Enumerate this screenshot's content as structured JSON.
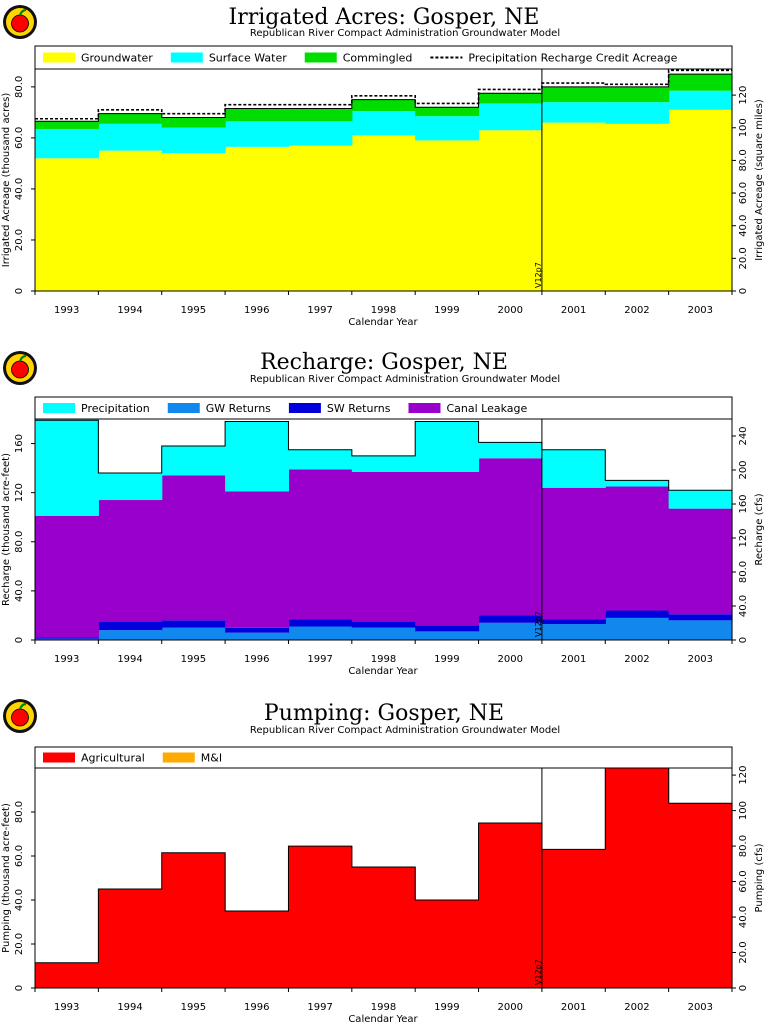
{
  "logo": "apple-logo-icon",
  "colors": {
    "groundwater": "#ffff00",
    "surface_water": "#00ffff",
    "commingled": "#00dd00",
    "precipitation": "#00ffff",
    "gw_returns": "#1188ee",
    "sw_returns": "#0000dd",
    "canal_leakage": "#9900cc",
    "agricultural": "#ff0000",
    "mi": "#ffaa00"
  },
  "chart_data": [
    {
      "id": "irrigated",
      "type": "area",
      "style": "stacked-step",
      "title": "Irrigated Acres: Gosper, NE",
      "subtitle": "Republican River Compact Administration Groundwater Model",
      "xlabel": "Calendar Year",
      "ylabel": "Irrigated Acreage (thousand acres)",
      "y2label": "Irrigated Acreage (square miles)",
      "categories": [
        "1993",
        "1994",
        "1995",
        "1996",
        "1997",
        "1998",
        "1999",
        "2000",
        "2001",
        "2002",
        "2003"
      ],
      "series": [
        {
          "name": "Groundwater",
          "color": "#ffff00",
          "values": [
            52,
            55,
            54,
            56.5,
            57,
            61,
            59,
            63,
            66,
            65.5,
            71
          ]
        },
        {
          "name": "Surface Water",
          "color": "#00ffff",
          "values": [
            11.5,
            10.5,
            10,
            10,
            9.5,
            9.5,
            9.5,
            10.5,
            8,
            8.5,
            7.5
          ]
        },
        {
          "name": "Commingled",
          "color": "#00dd00",
          "values": [
            3,
            4,
            4,
            5,
            5,
            4.5,
            3.5,
            4,
            6,
            6,
            6.5
          ]
        }
      ],
      "overlay": {
        "name": "Precipitation Recharge Credit Acreage",
        "values": [
          67.5,
          71,
          69.5,
          73,
          73,
          76.5,
          73.5,
          79,
          81.5,
          81,
          86.5
        ]
      },
      "ylim": [
        0,
        87
      ],
      "yticks": [
        "0",
        "20.0",
        "40.0",
        "60.0",
        "80.0"
      ],
      "y2ticks": [
        "0",
        "20.0",
        "40.0",
        "60.0",
        "80.0",
        "100",
        "120"
      ],
      "marker": {
        "label": "V12p7",
        "index": 8
      },
      "grid": false,
      "legend": "top"
    },
    {
      "id": "recharge",
      "type": "area",
      "style": "stacked-step",
      "title": "Recharge: Gosper, NE",
      "subtitle": "Republican River Compact Administration Groundwater Model",
      "xlabel": "Calendar Year",
      "ylabel": "Recharge (thousand acre-feet)",
      "y2label": "Recharge (cfs)",
      "categories": [
        "1993",
        "1994",
        "1995",
        "1996",
        "1997",
        "1998",
        "1999",
        "2000",
        "2001",
        "2002",
        "2003"
      ],
      "series": [
        {
          "name": "GW Returns",
          "color": "#1188ee",
          "values": [
            1,
            8,
            10,
            6,
            11,
            10,
            7,
            14,
            13,
            18,
            16
          ]
        },
        {
          "name": "SW Returns",
          "color": "#0000dd",
          "values": [
            1,
            7,
            6,
            4,
            6,
            5,
            5,
            6,
            4,
            6,
            5
          ]
        },
        {
          "name": "Canal Leakage",
          "color": "#9900cc",
          "values": [
            99,
            99,
            118,
            111,
            122,
            122,
            125,
            128,
            107,
            101,
            86
          ]
        },
        {
          "name": "Precipitation",
          "color": "#00ffff",
          "values": [
            78,
            22,
            24,
            57,
            16,
            13,
            41,
            13,
            31,
            5,
            15
          ]
        }
      ],
      "ylim": [
        0,
        180
      ],
      "yticks": [
        "0",
        "40.0",
        "80.0",
        "120",
        "160"
      ],
      "y2ticks": [
        "0",
        "40.0",
        "80.0",
        "120",
        "160",
        "200",
        "240"
      ],
      "marker": {
        "label": "V12p7",
        "index": 8
      },
      "grid": false,
      "legend": "top"
    },
    {
      "id": "pumping",
      "type": "area",
      "style": "stacked-step",
      "title": "Pumping: Gosper, NE",
      "subtitle": "Republican River Compact Administration Groundwater Model",
      "xlabel": "Calendar Year",
      "ylabel": "Pumping (thousand acre-feet)",
      "y2label": "Pumping (cfs)",
      "categories": [
        "1993",
        "1994",
        "1995",
        "1996",
        "1997",
        "1998",
        "1999",
        "2000",
        "2001",
        "2002",
        "2003"
      ],
      "series": [
        {
          "name": "Agricultural",
          "color": "#ff0000",
          "values": [
            11.5,
            45,
            61.5,
            35,
            64.5,
            55,
            40,
            75,
            63,
            100,
            84
          ]
        },
        {
          "name": "M&I",
          "color": "#ffaa00",
          "values": [
            0,
            0,
            0,
            0,
            0,
            0,
            0,
            0,
            0,
            0,
            0
          ]
        }
      ],
      "ylim": [
        0,
        100
      ],
      "yticks": [
        "0",
        "20.0",
        "40.0",
        "60.0",
        "80.0"
      ],
      "y2ticks": [
        "0",
        "20.0",
        "40.0",
        "60.0",
        "80.0",
        "100",
        "120"
      ],
      "marker": {
        "label": "V12p7",
        "index": 8
      },
      "grid": false,
      "legend": "top"
    }
  ]
}
